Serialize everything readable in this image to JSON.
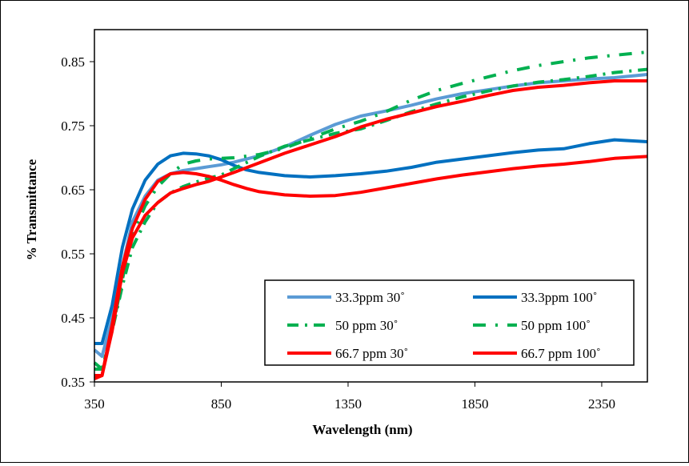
{
  "chart_data": {
    "type": "line",
    "xlabel": "Wavelength (nm)",
    "ylabel": "% Transmittance",
    "xlim": [
      350,
      2530
    ],
    "ylim": [
      0.35,
      0.9
    ],
    "x_ticks": [
      350,
      850,
      1350,
      1850,
      2350
    ],
    "y_ticks": [
      0.35,
      0.45,
      0.55,
      0.65,
      0.75,
      0.85
    ],
    "x_tick_labels": [
      "350",
      "850",
      "1350",
      "1850",
      "2350"
    ],
    "y_tick_labels": [
      "0.35",
      "0.45",
      "0.55",
      "0.65",
      "0.75",
      "0.85"
    ],
    "grid": false,
    "legend_position": "bottom-right",
    "series": [
      {
        "name": "33.3ppm 30˚",
        "color": "#5b9bd5",
        "style": "solid",
        "x": [
          350,
          380,
          420,
          460,
          500,
          550,
          600,
          650,
          700,
          750,
          800,
          850,
          900,
          1000,
          1100,
          1200,
          1300,
          1400,
          1500,
          1600,
          1700,
          1800,
          1900,
          2000,
          2100,
          2200,
          2300,
          2400,
          2530
        ],
        "y": [
          0.4,
          0.39,
          0.45,
          0.53,
          0.6,
          0.64,
          0.665,
          0.675,
          0.68,
          0.683,
          0.686,
          0.689,
          0.693,
          0.703,
          0.717,
          0.735,
          0.752,
          0.765,
          0.773,
          0.782,
          0.792,
          0.8,
          0.806,
          0.812,
          0.817,
          0.82,
          0.823,
          0.825,
          0.83
        ]
      },
      {
        "name": "33.3ppm 100˚",
        "color": "#0070c0",
        "style": "solid",
        "x": [
          350,
          380,
          420,
          460,
          500,
          550,
          600,
          650,
          700,
          750,
          800,
          850,
          900,
          950,
          1000,
          1100,
          1200,
          1300,
          1400,
          1500,
          1600,
          1700,
          1800,
          1900,
          2000,
          2100,
          2200,
          2300,
          2400,
          2530
        ],
        "y": [
          0.41,
          0.41,
          0.47,
          0.56,
          0.62,
          0.665,
          0.69,
          0.703,
          0.707,
          0.706,
          0.703,
          0.697,
          0.688,
          0.681,
          0.677,
          0.672,
          0.67,
          0.672,
          0.675,
          0.679,
          0.685,
          0.693,
          0.698,
          0.703,
          0.708,
          0.712,
          0.714,
          0.722,
          0.728,
          0.725
        ]
      },
      {
        "name": "50 ppm 30˚",
        "color": "#00b050",
        "style": "dash-dot",
        "x": [
          350,
          380,
          420,
          460,
          500,
          550,
          600,
          650,
          700,
          750,
          800,
          850,
          900,
          1000,
          1100,
          1200,
          1300,
          1400,
          1500,
          1600,
          1700,
          1800,
          1900,
          2000,
          2100,
          2200,
          2300,
          2400,
          2530
        ],
        "y": [
          0.37,
          0.37,
          0.43,
          0.5,
          0.56,
          0.6,
          0.63,
          0.645,
          0.655,
          0.662,
          0.668,
          0.673,
          0.683,
          0.702,
          0.718,
          0.728,
          0.738,
          0.745,
          0.758,
          0.772,
          0.784,
          0.795,
          0.804,
          0.812,
          0.818,
          0.822,
          0.827,
          0.833,
          0.838
        ]
      },
      {
        "name": "50 ppm 100˚",
        "color": "#00b050",
        "style": "dash-dot-wide",
        "x": [
          350,
          380,
          420,
          460,
          500,
          550,
          600,
          650,
          700,
          750,
          800,
          850,
          900,
          1000,
          1100,
          1200,
          1300,
          1400,
          1500,
          1600,
          1700,
          1800,
          1900,
          2000,
          2100,
          2200,
          2300,
          2400,
          2530
        ],
        "y": [
          0.38,
          0.37,
          0.43,
          0.51,
          0.58,
          0.625,
          0.655,
          0.675,
          0.69,
          0.695,
          0.698,
          0.699,
          0.7,
          0.705,
          0.715,
          0.73,
          0.745,
          0.757,
          0.772,
          0.79,
          0.805,
          0.816,
          0.826,
          0.836,
          0.844,
          0.85,
          0.856,
          0.86,
          0.865
        ]
      },
      {
        "name": "66.7 ppm 30˚",
        "color": "#ff0000",
        "style": "solid",
        "x": [
          350,
          380,
          420,
          460,
          500,
          550,
          600,
          650,
          700,
          750,
          800,
          850,
          900,
          1000,
          1100,
          1200,
          1300,
          1400,
          1500,
          1600,
          1700,
          1800,
          1900,
          2000,
          2100,
          2200,
          2300,
          2400,
          2530
        ],
        "y": [
          0.355,
          0.36,
          0.43,
          0.52,
          0.575,
          0.61,
          0.63,
          0.645,
          0.652,
          0.658,
          0.663,
          0.67,
          0.677,
          0.692,
          0.707,
          0.72,
          0.733,
          0.748,
          0.76,
          0.77,
          0.78,
          0.788,
          0.797,
          0.805,
          0.81,
          0.813,
          0.817,
          0.82,
          0.82
        ]
      },
      {
        "name": "66.7 ppm 100˚",
        "color": "#ff0000",
        "style": "solid",
        "x": [
          350,
          380,
          420,
          460,
          500,
          550,
          600,
          650,
          700,
          750,
          800,
          850,
          900,
          950,
          1000,
          1100,
          1200,
          1300,
          1400,
          1500,
          1600,
          1700,
          1800,
          1900,
          2000,
          2100,
          2200,
          2300,
          2400,
          2530
        ],
        "y": [
          0.36,
          0.36,
          0.44,
          0.53,
          0.59,
          0.635,
          0.663,
          0.675,
          0.677,
          0.675,
          0.671,
          0.665,
          0.658,
          0.652,
          0.647,
          0.642,
          0.64,
          0.641,
          0.646,
          0.653,
          0.66,
          0.667,
          0.673,
          0.678,
          0.683,
          0.687,
          0.69,
          0.694,
          0.699,
          0.702
        ]
      }
    ]
  }
}
